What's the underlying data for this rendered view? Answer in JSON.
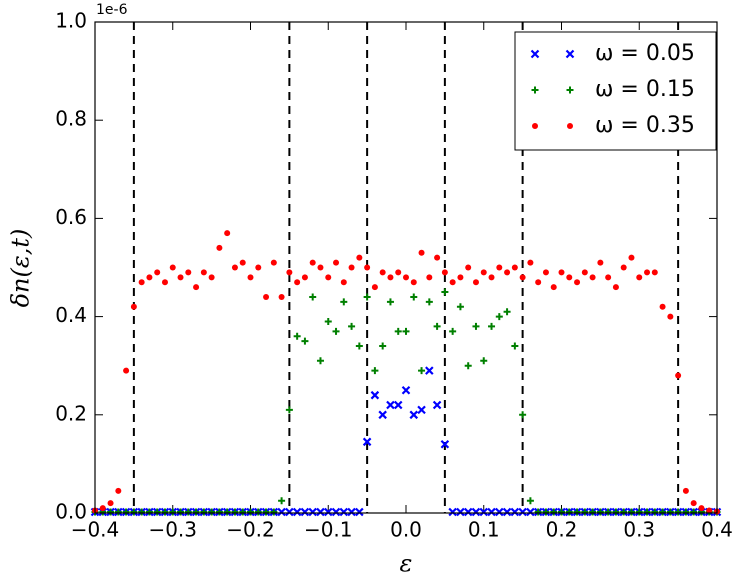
{
  "chart_data": {
    "type": "scatter",
    "x_label": "ε",
    "y_label": "δn(ε,t)",
    "offset_label": "1e-6",
    "xlim": [
      -0.4,
      0.4
    ],
    "ylim": [
      0,
      1.0
    ],
    "xticks": [
      {
        "value": -0.4,
        "label": "−0.4"
      },
      {
        "value": -0.3,
        "label": "−0.3"
      },
      {
        "value": -0.2,
        "label": "−0.2"
      },
      {
        "value": -0.1,
        "label": "−0.1"
      },
      {
        "value": 0,
        "label": "0.0"
      },
      0.1,
      0.2,
      0.3,
      0.4
    ],
    "yticks": [
      {
        "value": 0,
        "label": "0.0"
      },
      0.2,
      0.4,
      0.6,
      0.8,
      {
        "value": 1.0,
        "label": "1.0"
      }
    ],
    "vlines": [
      -0.35,
      -0.15,
      -0.05,
      0.05,
      0.15,
      0.35
    ],
    "legend": "upper right",
    "x": [
      -0.4,
      -0.39,
      -0.38,
      -0.37,
      -0.36,
      -0.35,
      -0.34,
      -0.33,
      -0.32,
      -0.31,
      -0.3,
      -0.29,
      -0.28,
      -0.27,
      -0.26,
      -0.25,
      -0.24,
      -0.23,
      -0.22,
      -0.21,
      -0.2,
      -0.19,
      -0.18,
      -0.17,
      -0.16,
      -0.15,
      -0.14,
      -0.13,
      -0.12,
      -0.11,
      -0.1,
      -0.09,
      -0.08,
      -0.07,
      -0.06,
      -0.05,
      -0.04,
      -0.03,
      -0.02,
      -0.01,
      0.0,
      0.01,
      0.02,
      0.03,
      0.04,
      0.05,
      0.06,
      0.07,
      0.08,
      0.09,
      0.1,
      0.11,
      0.12,
      0.13,
      0.14,
      0.15,
      0.16,
      0.17,
      0.18,
      0.19,
      0.2,
      0.21,
      0.22,
      0.23,
      0.24,
      0.25,
      0.26,
      0.27,
      0.28,
      0.29,
      0.3,
      0.31,
      0.32,
      0.33,
      0.34,
      0.35,
      0.36,
      0.37,
      0.38,
      0.39,
      0.4
    ],
    "series": [
      {
        "name": "ω = 0.05",
        "color": "#0000ff",
        "marker": "x",
        "values": [
          0.002,
          0.002,
          0.002,
          0.002,
          0.002,
          0.002,
          0.002,
          0.002,
          0.002,
          0.002,
          0.002,
          0.002,
          0.002,
          0.002,
          0.002,
          0.002,
          0.002,
          0.002,
          0.002,
          0.002,
          0.002,
          0.002,
          0.002,
          0.002,
          0.002,
          0.002,
          0.002,
          0.002,
          0.002,
          0.002,
          0.002,
          0.002,
          0.002,
          0.002,
          0.002,
          0.145,
          0.24,
          0.2,
          0.22,
          0.22,
          0.25,
          0.2,
          0.21,
          0.29,
          0.22,
          0.14,
          0.002,
          0.002,
          0.002,
          0.002,
          0.002,
          0.002,
          0.002,
          0.002,
          0.002,
          0.002,
          0.002,
          0.002,
          0.002,
          0.002,
          0.002,
          0.002,
          0.002,
          0.002,
          0.002,
          0.002,
          0.002,
          0.002,
          0.002,
          0.002,
          0.002,
          0.002,
          0.002,
          0.002,
          0.002,
          0.002,
          0.002,
          0.002,
          0.002,
          0.002,
          0.002
        ]
      },
      {
        "name": "ω = 0.15",
        "color": "#008000",
        "marker": "+",
        "values": [
          0.002,
          0.002,
          0.002,
          0.002,
          0.002,
          0.002,
          0.002,
          0.002,
          0.002,
          0.002,
          0.002,
          0.002,
          0.002,
          0.002,
          0.002,
          0.002,
          0.002,
          0.002,
          0.002,
          0.002,
          0.002,
          0.002,
          0.002,
          0.002,
          0.025,
          0.21,
          0.36,
          0.35,
          0.44,
          0.31,
          0.39,
          0.37,
          0.43,
          0.38,
          0.34,
          0.44,
          0.29,
          0.34,
          0.43,
          0.37,
          0.37,
          0.44,
          0.29,
          0.43,
          0.38,
          0.45,
          0.37,
          0.42,
          0.3,
          0.38,
          0.31,
          0.38,
          0.4,
          0.41,
          0.34,
          0.2,
          0.025,
          0.002,
          0.002,
          0.002,
          0.002,
          0.002,
          0.002,
          0.002,
          0.002,
          0.002,
          0.002,
          0.002,
          0.002,
          0.002,
          0.002,
          0.002,
          0.002,
          0.002,
          0.002,
          0.002,
          0.002,
          0.002,
          0.002,
          0.002,
          0.002
        ]
      },
      {
        "name": "ω = 0.35",
        "color": "#ff0000",
        "marker": "o",
        "values": [
          0.005,
          0.01,
          0.02,
          0.045,
          0.29,
          0.42,
          0.47,
          0.48,
          0.49,
          0.47,
          0.5,
          0.48,
          0.49,
          0.46,
          0.49,
          0.48,
          0.54,
          0.57,
          0.5,
          0.51,
          0.48,
          0.5,
          0.44,
          0.51,
          0.44,
          0.49,
          0.47,
          0.48,
          0.51,
          0.5,
          0.48,
          0.51,
          0.47,
          0.5,
          0.52,
          0.5,
          0.46,
          0.49,
          0.48,
          0.49,
          0.48,
          0.47,
          0.53,
          0.48,
          0.52,
          0.49,
          0.47,
          0.48,
          0.5,
          0.47,
          0.49,
          0.48,
          0.5,
          0.49,
          0.5,
          0.48,
          0.51,
          0.47,
          0.49,
          0.46,
          0.49,
          0.48,
          0.47,
          0.49,
          0.48,
          0.51,
          0.48,
          0.46,
          0.5,
          0.52,
          0.48,
          0.49,
          0.49,
          0.42,
          0.4,
          0.28,
          0.045,
          0.02,
          0.01,
          0.005,
          0.003
        ]
      }
    ]
  }
}
